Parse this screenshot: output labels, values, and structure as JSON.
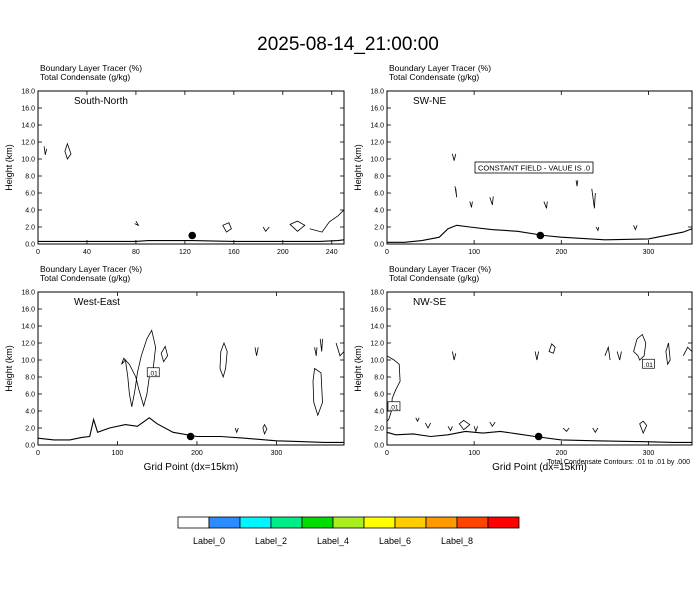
{
  "title": "2025-08-14_21:00:00",
  "colors": {
    "terrain": "#000000",
    "contour": "#000000",
    "background": "#ffffff"
  },
  "chart_data": [
    {
      "type": "contour",
      "header": [
        "Boundary Layer Tracer   (%)",
        "Total Condensate   (g/kg)"
      ],
      "cross_section": "South-North",
      "ylabel": "Height (km)",
      "xlabel": "",
      "xlim": [
        0,
        250
      ],
      "ylim": [
        0,
        18
      ],
      "xticks": [
        0,
        40,
        80,
        120,
        160,
        200,
        240
      ],
      "yticks": [
        0.0,
        2.0,
        4.0,
        6.0,
        8.0,
        10.0,
        12.0,
        14.0,
        16.0,
        18.0
      ],
      "marker": {
        "x": 126,
        "y": 1.0
      },
      "terrain": [
        [
          0,
          0.3
        ],
        [
          40,
          0.3
        ],
        [
          80,
          0.3
        ],
        [
          90,
          0.4
        ],
        [
          126,
          0.4
        ],
        [
          160,
          0.3
        ],
        [
          200,
          0.3
        ],
        [
          230,
          0.3
        ],
        [
          245,
          0.4
        ],
        [
          250,
          0.5
        ]
      ],
      "contours": [
        [
          [
            5,
            11.5
          ],
          [
            6,
            10.5
          ],
          [
            7,
            11.2
          ]
        ],
        [
          [
            24,
            11.8
          ],
          [
            27,
            10.6
          ],
          [
            24,
            10.0
          ],
          [
            22,
            10.9
          ]
        ],
        [
          [
            80,
            2.7
          ],
          [
            82,
            2.2
          ],
          [
            79,
            2.4
          ]
        ],
        [
          [
            151,
            2.2
          ],
          [
            154,
            1.4
          ],
          [
            158,
            1.8
          ],
          [
            156,
            2.5
          ]
        ],
        [
          [
            184,
            2.0
          ],
          [
            186,
            1.5
          ],
          [
            189,
            2.0
          ]
        ],
        [
          [
            206,
            2.3
          ],
          [
            212,
            1.5
          ],
          [
            218,
            2.2
          ],
          [
            212,
            2.7
          ]
        ],
        [
          [
            222,
            1.8
          ],
          [
            232,
            1.4
          ],
          [
            238,
            2.6
          ],
          [
            245,
            3.3
          ],
          [
            250,
            4.0
          ]
        ]
      ],
      "annotation": ""
    },
    {
      "type": "contour",
      "header": [
        "Boundary Layer Tracer   (%)",
        "Total Condensate   (g/kg)"
      ],
      "cross_section": "SW-NE",
      "ylabel": "Height (km)",
      "xlabel": "",
      "xlim": [
        0,
        350
      ],
      "ylim": [
        0,
        18
      ],
      "xticks": [
        0,
        100,
        200,
        300
      ],
      "yticks": [
        0.0,
        2.0,
        4.0,
        6.0,
        8.0,
        10.0,
        12.0,
        14.0,
        16.0,
        18.0
      ],
      "marker": {
        "x": 176,
        "y": 1.0
      },
      "terrain": [
        [
          0,
          0.2
        ],
        [
          20,
          0.2
        ],
        [
          40,
          0.4
        ],
        [
          60,
          0.8
        ],
        [
          70,
          1.8
        ],
        [
          80,
          2.2
        ],
        [
          95,
          2.0
        ],
        [
          120,
          1.7
        ],
        [
          150,
          1.5
        ],
        [
          180,
          1.0
        ],
        [
          200,
          0.8
        ],
        [
          250,
          0.5
        ],
        [
          300,
          0.6
        ],
        [
          340,
          1.4
        ],
        [
          350,
          1.8
        ]
      ],
      "contours": [
        [
          [
            75,
            10.6
          ],
          [
            77,
            9.8
          ],
          [
            79,
            10.6
          ]
        ],
        [
          [
            78,
            6.8
          ],
          [
            80,
            5.5
          ],
          [
            79,
            6.5
          ]
        ],
        [
          [
            95,
            5.0
          ],
          [
            97,
            4.3
          ],
          [
            98,
            5.0
          ]
        ],
        [
          [
            118,
            5.5
          ],
          [
            121,
            4.6
          ],
          [
            122,
            5.6
          ]
        ],
        [
          [
            180,
            5.0
          ],
          [
            183,
            4.2
          ],
          [
            184,
            5.0
          ]
        ],
        [
          [
            217,
            7.5
          ],
          [
            218,
            6.8
          ],
          [
            219,
            7.5
          ]
        ],
        [
          [
            235,
            6.5
          ],
          [
            238,
            4.2
          ],
          [
            239,
            6.0
          ]
        ],
        [
          [
            240,
            2.0
          ],
          [
            242,
            1.6
          ],
          [
            243,
            2.0
          ]
        ],
        [
          [
            283,
            2.2
          ],
          [
            285,
            1.7
          ],
          [
            287,
            2.2
          ]
        ]
      ],
      "annotation": "CONSTANT FIELD - VALUE IS .0"
    },
    {
      "type": "contour",
      "header": [
        "Boundary Layer Tracer   (%)",
        "Total Condensate   (g/kg)"
      ],
      "cross_section": "West-East",
      "ylabel": "Height (km)",
      "xlabel": "Grid Point (dx=15km)",
      "xlim": [
        0,
        385
      ],
      "ylim": [
        0,
        18
      ],
      "xticks": [
        0,
        100,
        200,
        300
      ],
      "yticks": [
        0.0,
        2.0,
        4.0,
        6.0,
        8.0,
        10.0,
        12.0,
        14.0,
        16.0,
        18.0
      ],
      "marker": {
        "x": 192,
        "y": 1.0
      },
      "terrain": [
        [
          0,
          0.8
        ],
        [
          20,
          0.6
        ],
        [
          40,
          0.6
        ],
        [
          55,
          0.9
        ],
        [
          65,
          1.0
        ],
        [
          70,
          3.0
        ],
        [
          75,
          1.5
        ],
        [
          90,
          2.0
        ],
        [
          110,
          2.4
        ],
        [
          125,
          2.2
        ],
        [
          140,
          3.2
        ],
        [
          150,
          2.5
        ],
        [
          170,
          1.5
        ],
        [
          200,
          1.0
        ],
        [
          230,
          1.0
        ],
        [
          260,
          0.8
        ],
        [
          300,
          0.5
        ],
        [
          330,
          0.4
        ],
        [
          360,
          0.3
        ],
        [
          385,
          0.3
        ]
      ],
      "contours": [
        [
          [
            105,
            9.5
          ],
          [
            110,
            10.0
          ],
          [
            113,
            8.0
          ],
          [
            115,
            6.0
          ],
          [
            118,
            4.5
          ],
          [
            122,
            6.5
          ],
          [
            125,
            8.5
          ],
          [
            130,
            10.5
          ],
          [
            137,
            12.5
          ],
          [
            143,
            13.5
          ],
          [
            148,
            11.5
          ],
          [
            145,
            9.0
          ],
          [
            140,
            8.0
          ],
          [
            137,
            6.0
          ],
          [
            133,
            4.6
          ],
          [
            127,
            6.5
          ],
          [
            123,
            8.0
          ],
          [
            115,
            9.5
          ],
          [
            108,
            10.2
          ]
        ],
        [
          [
            155,
            10.8
          ],
          [
            160,
            11.6
          ],
          [
            163,
            10.5
          ],
          [
            158,
            9.8
          ]
        ],
        [
          [
            230,
            11.0
          ],
          [
            234,
            12.0
          ],
          [
            238,
            11.0
          ],
          [
            236,
            9.0
          ],
          [
            233,
            8.0
          ],
          [
            229,
            9.0
          ]
        ],
        [
          [
            273,
            11.5
          ],
          [
            275,
            10.5
          ],
          [
            277,
            11.5
          ]
        ],
        [
          [
            348,
            11.5
          ],
          [
            350,
            10.5
          ],
          [
            351,
            11.5
          ]
        ],
        [
          [
            355,
            12.5
          ],
          [
            357,
            11.0
          ],
          [
            358,
            12.5
          ]
        ],
        [
          [
            348,
            9.0
          ],
          [
            356,
            8.5
          ],
          [
            358,
            5.0
          ],
          [
            352,
            3.5
          ],
          [
            347,
            5.0
          ],
          [
            346,
            7.5
          ]
        ],
        [
          [
            375,
            12.0
          ],
          [
            380,
            10.5
          ],
          [
            385,
            11.0
          ]
        ],
        [
          [
            248,
            2.0
          ],
          [
            250,
            1.5
          ],
          [
            252,
            2.0
          ]
        ],
        [
          [
            283,
            2.0
          ],
          [
            285,
            1.3
          ],
          [
            288,
            1.9
          ],
          [
            285,
            2.4
          ]
        ]
      ],
      "contour_labels": [
        {
          "x": 145,
          "y": 8.5,
          "text": ".01"
        }
      ],
      "annotation": ""
    },
    {
      "type": "contour",
      "header": [
        "Boundary Layer Tracer   (%)",
        "Total Condensate   (g/kg)"
      ],
      "cross_section": "NW-SE",
      "ylabel": "Height (km)",
      "xlabel": "Grid Point (dx=15km)",
      "xlim": [
        0,
        350
      ],
      "ylim": [
        0,
        18
      ],
      "xticks": [
        0,
        100,
        200,
        300
      ],
      "yticks": [
        0.0,
        2.0,
        4.0,
        6.0,
        8.0,
        10.0,
        12.0,
        14.0,
        16.0,
        18.0
      ],
      "marker": {
        "x": 174,
        "y": 1.0
      },
      "terrain": [
        [
          0,
          1.5
        ],
        [
          10,
          1.2
        ],
        [
          30,
          1.3
        ],
        [
          50,
          1.0
        ],
        [
          70,
          1.2
        ],
        [
          90,
          1.6
        ],
        [
          110,
          1.4
        ],
        [
          130,
          1.6
        ],
        [
          150,
          1.3
        ],
        [
          170,
          1.0
        ],
        [
          200,
          0.6
        ],
        [
          240,
          0.5
        ],
        [
          290,
          0.4
        ],
        [
          330,
          0.3
        ],
        [
          350,
          0.3
        ]
      ],
      "contours": [
        [
          [
            0,
            10.5
          ],
          [
            8,
            10.0
          ],
          [
            14,
            9.5
          ],
          [
            15,
            7.5
          ],
          [
            10,
            6.5
          ],
          [
            6,
            5.5
          ],
          [
            5,
            4.0
          ],
          [
            2,
            3.0
          ],
          [
            0,
            2.8
          ]
        ],
        [
          [
            33,
            3.2
          ],
          [
            35,
            2.8
          ],
          [
            37,
            3.2
          ]
        ],
        [
          [
            44,
            2.6
          ],
          [
            47,
            2.0
          ],
          [
            50,
            2.6
          ]
        ],
        [
          [
            70,
            2.2
          ],
          [
            73,
            1.7
          ],
          [
            75,
            2.2
          ]
        ],
        [
          [
            83,
            2.5
          ],
          [
            88,
            1.8
          ],
          [
            95,
            2.4
          ],
          [
            88,
            2.9
          ]
        ],
        [
          [
            100,
            2.2
          ],
          [
            102,
            1.6
          ],
          [
            104,
            2.2
          ]
        ],
        [
          [
            118,
            2.7
          ],
          [
            121,
            2.2
          ],
          [
            124,
            2.7
          ]
        ],
        [
          [
            202,
            2.0
          ],
          [
            206,
            1.6
          ],
          [
            209,
            2.0
          ]
        ],
        [
          [
            236,
            2.0
          ],
          [
            239,
            1.5
          ],
          [
            242,
            2.0
          ]
        ],
        [
          [
            290,
            2.5
          ],
          [
            294,
            1.4
          ],
          [
            298,
            2.3
          ],
          [
            294,
            2.8
          ]
        ],
        [
          [
            75,
            11.0
          ],
          [
            77,
            10.0
          ],
          [
            79,
            10.8
          ]
        ],
        [
          [
            170,
            11.0
          ],
          [
            172,
            10.0
          ],
          [
            174,
            11.0
          ]
        ],
        [
          [
            186,
            11.0
          ],
          [
            189,
            11.9
          ],
          [
            193,
            11.5
          ],
          [
            191,
            10.8
          ]
        ],
        [
          [
            250,
            10.5
          ],
          [
            254,
            11.5
          ],
          [
            256,
            10.0
          ]
        ],
        [
          [
            264,
            11.0
          ],
          [
            267,
            10.0
          ],
          [
            269,
            11.0
          ]
        ],
        [
          [
            283,
            11.0
          ],
          [
            287,
            12.5
          ],
          [
            293,
            13.0
          ],
          [
            297,
            12.0
          ],
          [
            295,
            10.5
          ],
          [
            290,
            10.0
          ],
          [
            288,
            10.5
          ]
        ],
        [
          [
            320,
            11.0
          ],
          [
            323,
            12.0
          ],
          [
            325,
            10.0
          ],
          [
            322,
            9.5
          ]
        ],
        [
          [
            340,
            10.5
          ],
          [
            345,
            11.5
          ],
          [
            350,
            11.0
          ]
        ]
      ],
      "contour_labels": [
        {
          "x": 8,
          "y": 4.5,
          "text": ".01"
        },
        {
          "x": 300,
          "y": 9.5,
          "text": ".01"
        }
      ],
      "annotation": ""
    }
  ],
  "footer_note": "Total Condensate Contours: .01 to .01 by .000",
  "legend": {
    "labels": [
      "Label_0",
      "Label_2",
      "Label_4",
      "Label_6",
      "Label_8"
    ],
    "colors": [
      "#ffffff",
      "#2b8cff",
      "#00f5ff",
      "#00ee88",
      "#00dd00",
      "#aaee22",
      "#ffff00",
      "#ffcc00",
      "#ff9900",
      "#ff4400",
      "#ff0000"
    ]
  }
}
